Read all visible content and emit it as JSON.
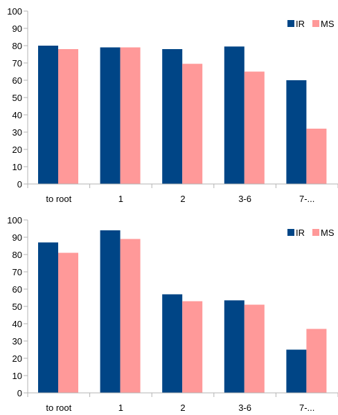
{
  "chart_data": [
    {
      "type": "bar",
      "categories": [
        "to root",
        "1",
        "2",
        "3-6",
        "7-..."
      ],
      "series": [
        {
          "name": "IR",
          "color": "#004586",
          "values": [
            80,
            79,
            78,
            79.5,
            60
          ]
        },
        {
          "name": "MS",
          "color": "#ff9999",
          "values": [
            78,
            79,
            69.5,
            65,
            32
          ]
        }
      ],
      "ylim": [
        0,
        100
      ],
      "yticks": [
        0,
        10,
        20,
        30,
        40,
        50,
        60,
        70,
        80,
        90,
        100
      ],
      "grid": false,
      "legend_position": "top-right"
    },
    {
      "type": "bar",
      "categories": [
        "to root",
        "1",
        "2",
        "3-6",
        "7-..."
      ],
      "series": [
        {
          "name": "IR",
          "color": "#004586",
          "values": [
            87,
            94,
            57,
            53.5,
            25
          ]
        },
        {
          "name": "MS",
          "color": "#ff9999",
          "values": [
            81,
            89,
            53,
            51,
            37
          ]
        }
      ],
      "ylim": [
        0,
        100
      ],
      "yticks": [
        0,
        10,
        20,
        30,
        40,
        50,
        60,
        70,
        80,
        90,
        100
      ],
      "grid": false,
      "legend_position": "top-right"
    }
  ]
}
